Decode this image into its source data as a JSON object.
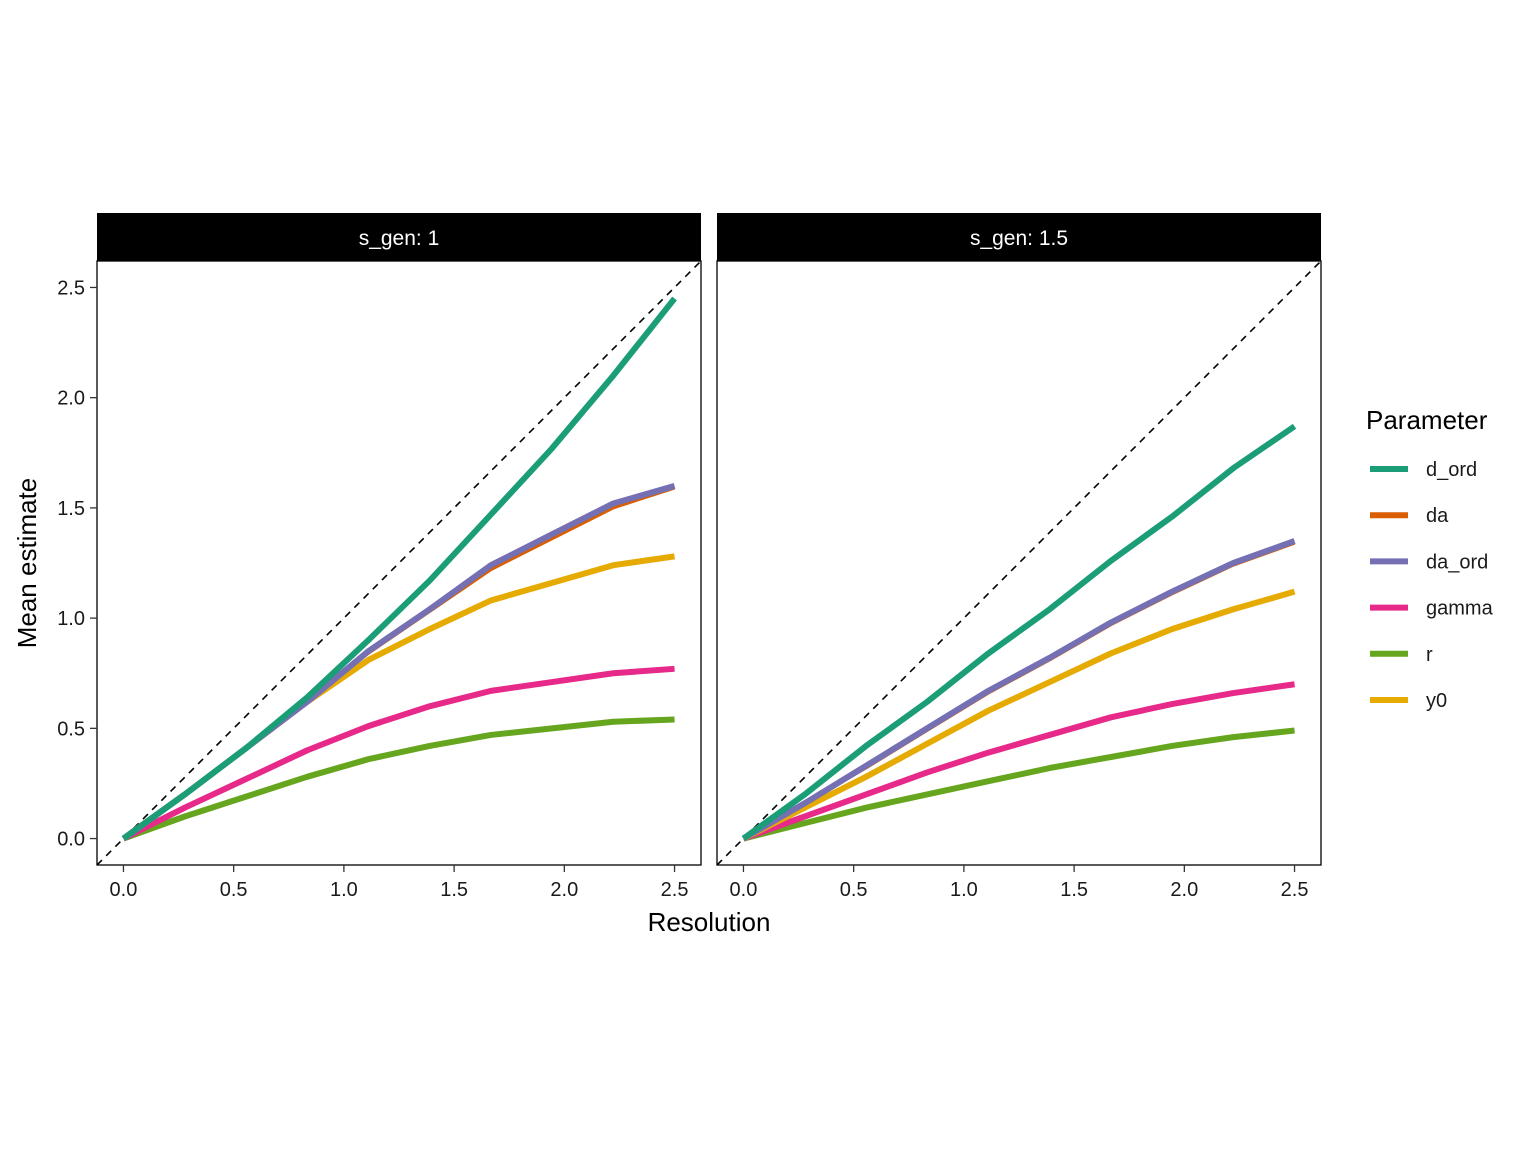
{
  "chart_data": {
    "type": "line",
    "xlabel": "Resolution",
    "ylabel": "Mean estimate",
    "xlim": [
      -0.12,
      2.62
    ],
    "ylim": [
      -0.12,
      2.62
    ],
    "x_ticks": [
      "0.0",
      "0.5",
      "1.0",
      "1.5",
      "2.0",
      "2.5"
    ],
    "y_ticks": [
      "0.0",
      "0.5",
      "1.0",
      "1.5",
      "2.0",
      "2.5"
    ],
    "reference_line": "y = x (dashed)",
    "grid": false,
    "legend": {
      "title": "Parameter",
      "placement": "right"
    },
    "series_styles": [
      {
        "name": "d_ord",
        "color": "#1b9e77"
      },
      {
        "name": "da",
        "color": "#d95f02"
      },
      {
        "name": "da_ord",
        "color": "#7570b3"
      },
      {
        "name": "gamma",
        "color": "#e7298a"
      },
      {
        "name": "r",
        "color": "#66a61e"
      },
      {
        "name": "y0",
        "color": "#e6ab02"
      }
    ],
    "panels": [
      {
        "strip": "s_gen: 1",
        "x": [
          0,
          0.278,
          0.556,
          0.833,
          1.111,
          1.389,
          1.667,
          1.944,
          2.222,
          2.5
        ],
        "series": [
          {
            "name": "d_ord",
            "values": [
              0,
              0.2,
              0.41,
              0.64,
              0.9,
              1.17,
              1.47,
              1.77,
              2.1,
              2.45
            ]
          },
          {
            "name": "da",
            "values": [
              0,
              0.2,
              0.41,
              0.62,
              0.84,
              1.03,
              1.22,
              1.36,
              1.5,
              1.59
            ]
          },
          {
            "name": "da_ord",
            "values": [
              0,
              0.2,
              0.41,
              0.62,
              0.85,
              1.04,
              1.24,
              1.38,
              1.52,
              1.6
            ]
          },
          {
            "name": "gamma",
            "values": [
              0,
              0.14,
              0.27,
              0.4,
              0.51,
              0.6,
              0.67,
              0.71,
              0.75,
              0.77
            ]
          },
          {
            "name": "r",
            "values": [
              0,
              0.1,
              0.19,
              0.28,
              0.36,
              0.42,
              0.47,
              0.5,
              0.53,
              0.54
            ]
          },
          {
            "name": "y0",
            "values": [
              0,
              0.2,
              0.41,
              0.62,
              0.81,
              0.95,
              1.08,
              1.16,
              1.24,
              1.28
            ]
          }
        ]
      },
      {
        "strip": "s_gen: 1.5",
        "x": [
          0,
          0.278,
          0.556,
          0.833,
          1.111,
          1.389,
          1.667,
          1.944,
          2.222,
          2.5
        ],
        "series": [
          {
            "name": "d_ord",
            "values": [
              0,
              0.2,
              0.42,
              0.62,
              0.84,
              1.04,
              1.26,
              1.46,
              1.68,
              1.87
            ]
          },
          {
            "name": "da",
            "values": [
              0,
              0.16,
              0.32,
              0.49,
              0.66,
              0.81,
              0.97,
              1.11,
              1.24,
              1.34
            ]
          },
          {
            "name": "da_ord",
            "values": [
              0,
              0.16,
              0.33,
              0.5,
              0.67,
              0.82,
              0.98,
              1.12,
              1.25,
              1.35
            ]
          },
          {
            "name": "gamma",
            "values": [
              0,
              0.1,
              0.2,
              0.3,
              0.39,
              0.47,
              0.55,
              0.61,
              0.66,
              0.7
            ]
          },
          {
            "name": "r",
            "values": [
              0,
              0.07,
              0.14,
              0.2,
              0.26,
              0.32,
              0.37,
              0.42,
              0.46,
              0.49
            ]
          },
          {
            "name": "y0",
            "values": [
              0,
              0.14,
              0.28,
              0.43,
              0.58,
              0.71,
              0.84,
              0.95,
              1.04,
              1.12
            ]
          }
        ]
      }
    ]
  }
}
